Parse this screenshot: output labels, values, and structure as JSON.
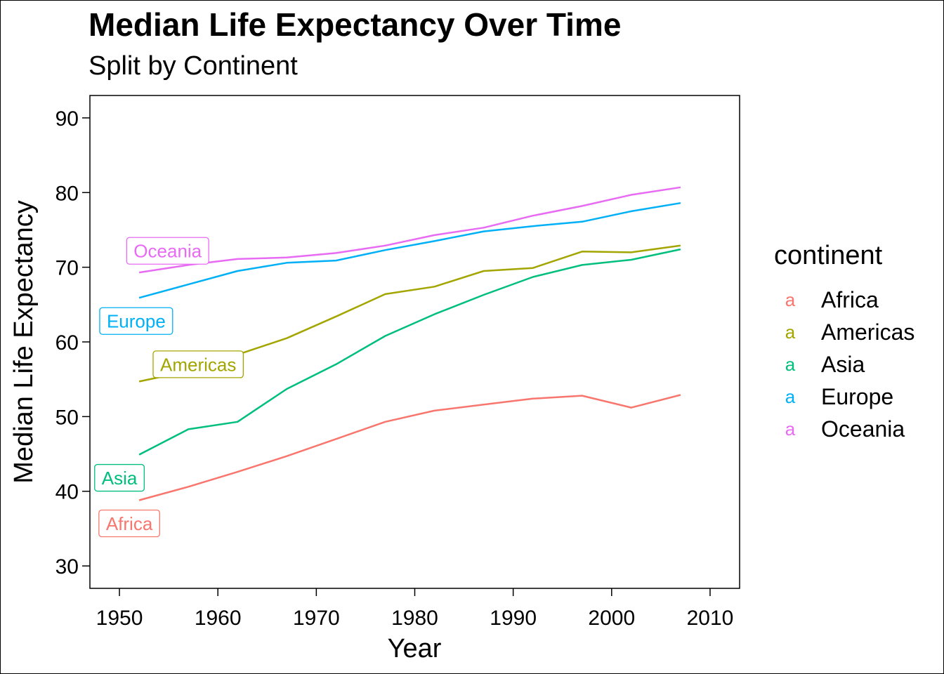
{
  "chart_data": {
    "type": "line",
    "title": "Median Life Expectancy Over Time",
    "subtitle": "Split by Continent",
    "xlabel": "Year",
    "ylabel": "Median Life Expectancy",
    "xlim": [
      1947,
      2013
    ],
    "ylim": [
      27,
      93
    ],
    "x_ticks": [
      1950,
      1960,
      1970,
      1980,
      1990,
      2000,
      2010
    ],
    "y_ticks": [
      30,
      40,
      50,
      60,
      70,
      80,
      90
    ],
    "grid": false,
    "legend": {
      "title": "continent",
      "position": "right",
      "key_glyph": "a"
    },
    "x": [
      1952,
      1957,
      1962,
      1967,
      1972,
      1977,
      1982,
      1987,
      1992,
      1997,
      2002,
      2007
    ],
    "series": [
      {
        "name": "Africa",
        "color": "#F8766D",
        "values": [
          38.8,
          40.6,
          42.6,
          44.7,
          47.0,
          49.3,
          50.8,
          51.6,
          52.4,
          52.8,
          51.2,
          52.9
        ],
        "label": {
          "text": "Africa",
          "x": 1951,
          "y": 35.7
        }
      },
      {
        "name": "Americas",
        "color": "#A3A500",
        "values": [
          54.7,
          56.1,
          58.3,
          60.5,
          63.4,
          66.4,
          67.4,
          69.5,
          69.9,
          72.1,
          72.0,
          72.9
        ],
        "label": {
          "text": "Americas",
          "x": 1958,
          "y": 57.0
        }
      },
      {
        "name": "Asia",
        "color": "#00BF7D",
        "values": [
          44.9,
          48.3,
          49.3,
          53.7,
          57.0,
          60.8,
          63.7,
          66.3,
          68.7,
          70.3,
          71.0,
          72.4
        ],
        "label": {
          "text": "Asia",
          "x": 1950,
          "y": 41.8
        }
      },
      {
        "name": "Europe",
        "color": "#00B0F6",
        "values": [
          65.9,
          67.7,
          69.5,
          70.6,
          70.9,
          72.3,
          73.5,
          74.8,
          75.5,
          76.1,
          77.5,
          78.6
        ],
        "label": {
          "text": "Europe",
          "x": 1951.7,
          "y": 62.8
        }
      },
      {
        "name": "Oceania",
        "color": "#E76BF3",
        "values": [
          69.3,
          70.3,
          71.1,
          71.3,
          71.9,
          72.9,
          74.3,
          75.3,
          76.9,
          78.2,
          79.7,
          80.7
        ],
        "label": {
          "text": "Oceania",
          "x": 1954.9,
          "y": 72.2
        }
      }
    ]
  }
}
